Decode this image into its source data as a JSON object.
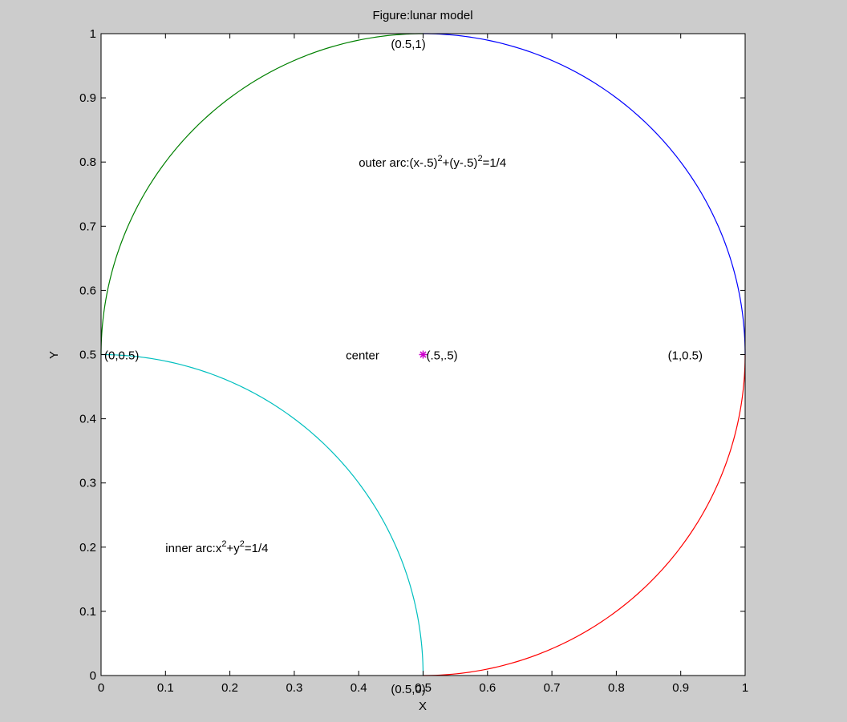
{
  "chart_data": {
    "type": "line",
    "title": "Figure:lunar model",
    "xlabel": "X",
    "ylabel": "Y",
    "xlim": [
      0,
      1
    ],
    "ylim": [
      0,
      1
    ],
    "grid": false,
    "xticks": [
      0,
      0.1,
      0.2,
      0.3,
      0.4,
      0.5,
      0.6,
      0.7,
      0.8,
      0.9,
      1
    ],
    "yticks": [
      0,
      0.1,
      0.2,
      0.3,
      0.4,
      0.5,
      0.6,
      0.7,
      0.8,
      0.9,
      1
    ],
    "xtick_labels": [
      "0",
      "0.1",
      "0.2",
      "0.3",
      "0.4",
      "0.5",
      "0.6",
      "0.7",
      "0.8",
      "0.9",
      "1"
    ],
    "ytick_labels": [
      "0",
      "0.1",
      "0.2",
      "0.3",
      "0.4",
      "0.5",
      "0.6",
      "0.7",
      "0.8",
      "0.9",
      "1"
    ],
    "series": [
      {
        "color": "#008000",
        "arc": {
          "cx": 0.5,
          "cy": 0.5,
          "r": 0.5,
          "start_deg": 90,
          "end_deg": 180
        }
      },
      {
        "color": "#0000ff",
        "arc": {
          "cx": 0.5,
          "cy": 0.5,
          "r": 0.5,
          "start_deg": 0,
          "end_deg": 90
        }
      },
      {
        "color": "#ff0000",
        "arc": {
          "cx": 0.5,
          "cy": 0.5,
          "r": 0.5,
          "start_deg": 270,
          "end_deg": 360
        }
      },
      {
        "color": "#00bfbf",
        "arc": {
          "cx": 0,
          "cy": 0,
          "r": 0.5,
          "start_deg": 0,
          "end_deg": 90
        }
      }
    ],
    "points": [
      {
        "x": 0.5,
        "y": 0.5,
        "marker": "*",
        "color": "#cc00cc"
      }
    ],
    "annotations": [
      {
        "text": "(0.5,1)",
        "x": 0.45,
        "y": 0.985
      },
      {
        "text": "(0,0.5)",
        "x": 0.005,
        "y": 0.5
      },
      {
        "text": "center",
        "x": 0.38,
        "y": 0.5
      },
      {
        "text": "(.5,.5)",
        "x": 0.505,
        "y": 0.5
      },
      {
        "text": "(1,0.5)",
        "x": 0.88,
        "y": 0.5
      },
      {
        "text": "(0.5,0)",
        "x": 0.45,
        "y": -0.02
      }
    ],
    "equation_labels": [
      {
        "prefix": "outer arc:(x-.5)",
        "mid1": "+(y-.5)",
        "suffix": "=1/4",
        "exp": "2",
        "x": 0.4,
        "y": 0.8
      },
      {
        "prefix": "inner arc:x",
        "mid1": "+y",
        "suffix": "=1/4",
        "exp": "2",
        "x": 0.1,
        "y": 0.2
      }
    ]
  }
}
